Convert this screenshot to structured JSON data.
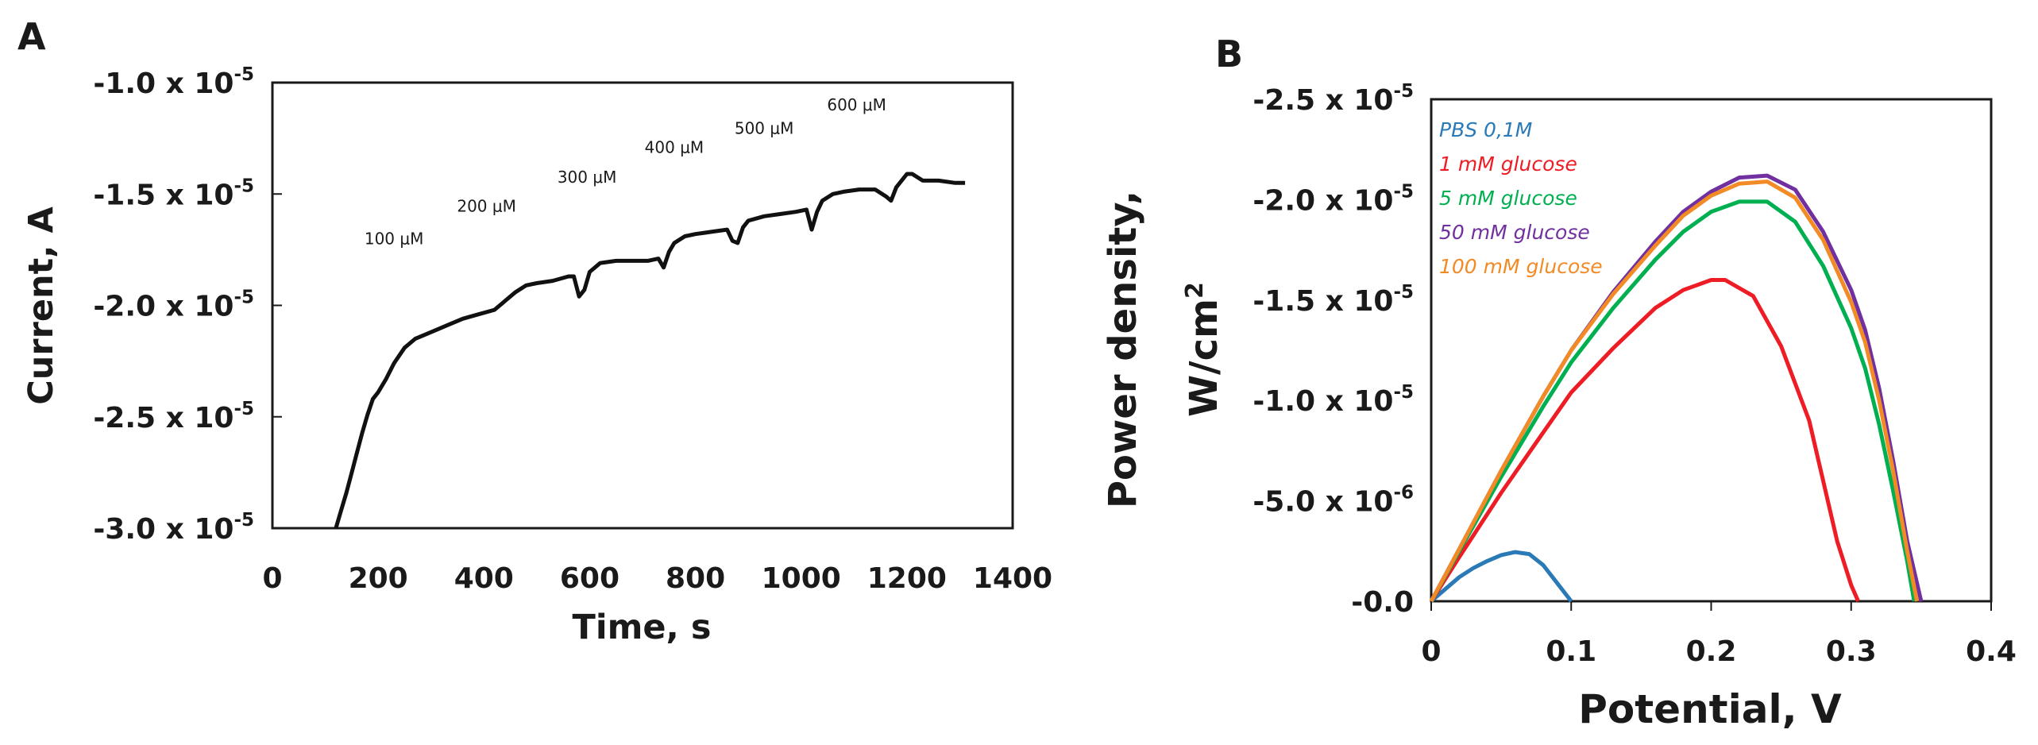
{
  "panels": {
    "a": {
      "letter": "A"
    },
    "b": {
      "letter": "B"
    }
  },
  "chart_data": [
    {
      "type": "line",
      "panel": "A",
      "xlabel": "Time, s",
      "ylabel": "Current,  A",
      "xlim": [
        0,
        1400
      ],
      "ylim": [
        -3e-05,
        -1e-05
      ],
      "x_ticks": [
        "0",
        "200",
        "400",
        "600",
        "800",
        "1000",
        "1200",
        "1400"
      ],
      "y_ticks": [
        {
          "mantissa": "-1.0 x 10",
          "exp": "-5",
          "value": -1e-05
        },
        {
          "mantissa": "-1.5 x 10",
          "exp": "-5",
          "value": -1.5e-05
        },
        {
          "mantissa": "-2.0 x 10",
          "exp": "-5",
          "value": -2e-05
        },
        {
          "mantissa": "-2.5 x 10",
          "exp": "-5",
          "value": -2.5e-05
        },
        {
          "mantissa": "-3.0 x 10",
          "exp": "-5",
          "value": -3e-05
        }
      ],
      "y_inverted": true,
      "grid": false,
      "annotations": [
        {
          "text": "100  μM",
          "x": 230,
          "y": -1.725e-05
        },
        {
          "text": "200  μM",
          "x": 405,
          "y": -1.58e-05
        },
        {
          "text": "300  μM",
          "x": 595,
          "y": -1.45e-05
        },
        {
          "text": "400  μM",
          "x": 760,
          "y": -1.315e-05
        },
        {
          "text": "500  μM",
          "x": 930,
          "y": -1.23e-05
        },
        {
          "text": "600  μM",
          "x": 1105,
          "y": -1.125e-05
        }
      ],
      "series": [
        {
          "color": "#111111",
          "x": [
            120,
            130,
            140,
            150,
            160,
            170,
            180,
            190,
            200,
            215,
            230,
            250,
            270,
            300,
            330,
            360,
            390,
            420,
            440,
            460,
            480,
            500,
            530,
            560,
            570,
            580,
            590,
            600,
            620,
            650,
            680,
            710,
            730,
            740,
            750,
            760,
            780,
            800,
            830,
            860,
            870,
            880,
            890,
            900,
            930,
            960,
            990,
            1010,
            1020,
            1030,
            1040,
            1060,
            1080,
            1110,
            1140,
            1160,
            1170,
            1180,
            1200,
            1210,
            1230,
            1260,
            1290,
            1310
          ],
          "values": [
            -3e-05,
            -2.92e-05,
            -2.84e-05,
            -2.75e-05,
            -2.66e-05,
            -2.57e-05,
            -2.49e-05,
            -2.42e-05,
            -2.39e-05,
            -2.33e-05,
            -2.26e-05,
            -2.19e-05,
            -2.15e-05,
            -2.12e-05,
            -2.09e-05,
            -2.06e-05,
            -2.04e-05,
            -2.02e-05,
            -1.98e-05,
            -1.94e-05,
            -1.91e-05,
            -1.9e-05,
            -1.89e-05,
            -1.87e-05,
            -1.87e-05,
            -1.96e-05,
            -1.93e-05,
            -1.85e-05,
            -1.81e-05,
            -1.8e-05,
            -1.8e-05,
            -1.8e-05,
            -1.79e-05,
            -1.83e-05,
            -1.76e-05,
            -1.72e-05,
            -1.69e-05,
            -1.68e-05,
            -1.67e-05,
            -1.66e-05,
            -1.71e-05,
            -1.72e-05,
            -1.65e-05,
            -1.62e-05,
            -1.6e-05,
            -1.59e-05,
            -1.58e-05,
            -1.57e-05,
            -1.66e-05,
            -1.58e-05,
            -1.53e-05,
            -1.5e-05,
            -1.49e-05,
            -1.48e-05,
            -1.48e-05,
            -1.51e-05,
            -1.53e-05,
            -1.47e-05,
            -1.41e-05,
            -1.41e-05,
            -1.44e-05,
            -1.44e-05,
            -1.45e-05,
            -1.45e-05
          ]
        }
      ]
    },
    {
      "type": "line",
      "panel": "B",
      "xlabel": "Potential, V",
      "ylabel_line1": "Power density,",
      "ylabel_line2": "W/cm",
      "ylabel_sup": "2",
      "xlim": [
        0,
        0.4
      ],
      "ylim": [
        0,
        -2.5e-05
      ],
      "x_ticks": [
        "0",
        "0.1",
        "0.2",
        "0.3",
        "0.4"
      ],
      "y_ticks": [
        {
          "mantissa": "-0.0",
          "exp": "",
          "value": 0
        },
        {
          "mantissa": "-5.0 x 10",
          "exp": "-6",
          "value": -5e-06
        },
        {
          "mantissa": "-1.0 x 10",
          "exp": "-5",
          "value": -1e-05
        },
        {
          "mantissa": "-1.5 x 10",
          "exp": "-5",
          "value": -1.5e-05
        },
        {
          "mantissa": "-2.0 x 10",
          "exp": "-5",
          "value": -2e-05
        },
        {
          "mantissa": "-2.5 x 10",
          "exp": "-5",
          "value": -2.5e-05
        }
      ],
      "grid": false,
      "legend_position": "top-left",
      "series": [
        {
          "name": "PBS 0,1M",
          "color": "#2a7ab8",
          "x": [
            0,
            0.01,
            0.02,
            0.03,
            0.04,
            0.05,
            0.06,
            0.07,
            0.08,
            0.09,
            0.1
          ],
          "values": [
            0,
            -6e-07,
            -1.2e-06,
            -1.65e-06,
            -2e-06,
            -2.3e-06,
            -2.45e-06,
            -2.35e-06,
            -1.8e-06,
            -9e-07,
            0
          ]
        },
        {
          "name": "1 mM glucose",
          "color": "#ee1c24",
          "x": [
            0,
            0.02,
            0.05,
            0.08,
            0.1,
            0.13,
            0.16,
            0.18,
            0.2,
            0.21,
            0.23,
            0.25,
            0.27,
            0.28,
            0.29,
            0.3,
            0.305
          ],
          "values": [
            0,
            -2.2e-06,
            -5.4e-06,
            -8.4e-06,
            -1.04e-05,
            -1.26e-05,
            -1.46e-05,
            -1.55e-05,
            -1.6e-05,
            -1.6e-05,
            -1.52e-05,
            -1.27e-05,
            -9e-06,
            -6e-06,
            -3e-06,
            -8e-07,
            0
          ]
        },
        {
          "name": "5 mM glucose",
          "color": "#00b050",
          "x": [
            0,
            0.02,
            0.05,
            0.08,
            0.1,
            0.13,
            0.16,
            0.18,
            0.2,
            0.22,
            0.24,
            0.26,
            0.28,
            0.3,
            0.31,
            0.32,
            0.33,
            0.34,
            0.345
          ],
          "values": [
            0,
            -2.5e-06,
            -6.2e-06,
            -9.7e-06,
            -1.19e-05,
            -1.46e-05,
            -1.7e-05,
            -1.84e-05,
            -1.94e-05,
            -1.99e-05,
            -1.99e-05,
            -1.89e-05,
            -1.67e-05,
            -1.36e-05,
            -1.16e-05,
            -8.8e-06,
            -5.5e-06,
            -2e-06,
            0
          ]
        },
        {
          "name": "50 mM glucose",
          "color": "#7030a0",
          "x": [
            0,
            0.02,
            0.05,
            0.08,
            0.1,
            0.13,
            0.16,
            0.18,
            0.2,
            0.22,
            0.24,
            0.26,
            0.28,
            0.3,
            0.31,
            0.32,
            0.33,
            0.34,
            0.35
          ],
          "values": [
            0,
            -2.6e-06,
            -6.5e-06,
            -1.02e-05,
            -1.25e-05,
            -1.54e-05,
            -1.79e-05,
            -1.94e-05,
            -2.04e-05,
            -2.11e-05,
            -2.12e-05,
            -2.05e-05,
            -1.84e-05,
            -1.55e-05,
            -1.35e-05,
            -1.06e-05,
            -7e-06,
            -3e-06,
            0
          ]
        },
        {
          "name": "100 mM glucose",
          "color": "#f28b25",
          "x": [
            0,
            0.02,
            0.05,
            0.08,
            0.1,
            0.13,
            0.16,
            0.18,
            0.2,
            0.22,
            0.24,
            0.26,
            0.28,
            0.3,
            0.31,
            0.32,
            0.33,
            0.34,
            0.347
          ],
          "values": [
            0,
            -2.6e-06,
            -6.5e-06,
            -1.02e-05,
            -1.25e-05,
            -1.53e-05,
            -1.77e-05,
            -1.92e-05,
            -2.02e-05,
            -2.08e-05,
            -2.09e-05,
            -2.01e-05,
            -1.8e-05,
            -1.49e-05,
            -1.29e-05,
            -1e-05,
            -6.5e-06,
            -2.5e-06,
            0
          ]
        }
      ]
    }
  ]
}
